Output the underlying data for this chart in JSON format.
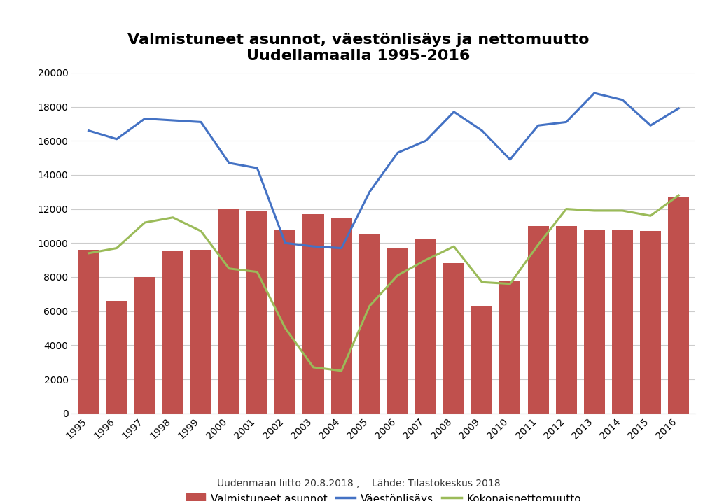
{
  "title": "Valmistuneet asunnot, väestönlisäys ja nettomuutto\nUudellamaalla 1995-2016",
  "years": [
    1995,
    1996,
    1997,
    1998,
    1999,
    2000,
    2001,
    2002,
    2003,
    2004,
    2005,
    2006,
    2007,
    2008,
    2009,
    2010,
    2011,
    2012,
    2013,
    2014,
    2015,
    2016
  ],
  "bar_values": [
    9600,
    6600,
    8000,
    9500,
    9600,
    12000,
    11900,
    10800,
    11700,
    11500,
    10500,
    9700,
    10200,
    8800,
    6300,
    7800,
    11000,
    11000,
    10800,
    10800,
    10700,
    12700
  ],
  "line_vaesto": [
    16600,
    16100,
    17300,
    17200,
    17100,
    14700,
    14400,
    10000,
    9800,
    9700,
    13000,
    15300,
    16000,
    17700,
    16600,
    14900,
    16900,
    17100,
    18800,
    18400,
    16900,
    17900
  ],
  "line_netto": [
    9400,
    9700,
    11200,
    11500,
    10700,
    8500,
    8300,
    5000,
    2700,
    2500,
    6300,
    8100,
    9000,
    9800,
    7700,
    7600,
    9900,
    12000,
    11900,
    11900,
    11600,
    12800
  ],
  "bar_color": "#C0504D",
  "line_vaesto_color": "#4472C4",
  "line_netto_color": "#9BBB59",
  "ylim": [
    0,
    20000
  ],
  "yticks": [
    0,
    2000,
    4000,
    6000,
    8000,
    10000,
    12000,
    14000,
    16000,
    18000,
    20000
  ],
  "legend_bar": "Valmistuneet asunnot",
  "legend_vaesto": "Väestönlisäys",
  "legend_netto": "Kokonaisnettomuutto",
  "footnote": "Uudenmaan liitto 20.8.2018 ,    Lähde: Tilastokeskus 2018",
  "background_color": "#FFFFFF",
  "grid_color": "#CCCCCC",
  "title_fontsize": 16,
  "axis_fontsize": 10,
  "legend_fontsize": 11
}
